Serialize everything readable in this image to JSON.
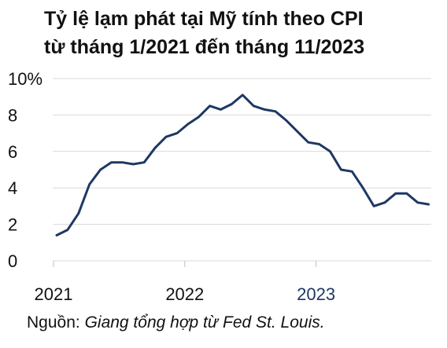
{
  "title_lines": [
    "Tỷ lệ lạm phát tại Mỹ tính theo CPI",
    "từ tháng 1/2021 đến tháng 11/2023"
  ],
  "source": {
    "label": "Nguồn: ",
    "text": "Giang tổng hợp từ Fed St. Louis."
  },
  "chart_data": {
    "type": "line",
    "title": "Tỷ lệ lạm phát tại Mỹ tính theo CPI từ tháng 1/2021 đến tháng 11/2023",
    "xlabel": "",
    "ylabel": "",
    "ylim": [
      0,
      10
    ],
    "y_ticks": [
      {
        "value": 0,
        "label": "0"
      },
      {
        "value": 2,
        "label": "2"
      },
      {
        "value": 4,
        "label": "4"
      },
      {
        "value": 6,
        "label": "6"
      },
      {
        "value": 8,
        "label": "8"
      },
      {
        "value": 10,
        "label": "10%"
      }
    ],
    "x_ticks": [
      {
        "date": "2021-01",
        "label": "2021",
        "color": "#111111"
      },
      {
        "date": "2022-01",
        "label": "2022",
        "color": "#111111"
      },
      {
        "date": "2023-01",
        "label": "2023",
        "color": "#1f3864"
      }
    ],
    "grid": "horizontal",
    "line_color": "#1f3864",
    "grid_color": "#d9d9d9",
    "series": [
      {
        "x": [
          "2021-01",
          "2021-02",
          "2021-03",
          "2021-04",
          "2021-05",
          "2021-06",
          "2021-07",
          "2021-08",
          "2021-09",
          "2021-10",
          "2021-11",
          "2021-12",
          "2022-01",
          "2022-02",
          "2022-03",
          "2022-04",
          "2022-05",
          "2022-06",
          "2022-07",
          "2022-08",
          "2022-09",
          "2022-10",
          "2022-11",
          "2022-12",
          "2023-01",
          "2023-02",
          "2023-03",
          "2023-04",
          "2023-05",
          "2023-06",
          "2023-07",
          "2023-08",
          "2023-09",
          "2023-10",
          "2023-11"
        ],
        "values": [
          1.4,
          1.7,
          2.6,
          4.2,
          5.0,
          5.4,
          5.4,
          5.3,
          5.4,
          6.2,
          6.8,
          7.0,
          7.5,
          7.9,
          8.5,
          8.3,
          8.6,
          9.1,
          8.5,
          8.3,
          8.2,
          7.7,
          7.1,
          6.5,
          6.4,
          6.0,
          5.0,
          4.9,
          4.0,
          3.0,
          3.2,
          3.7,
          3.7,
          3.2,
          3.1
        ]
      }
    ]
  }
}
